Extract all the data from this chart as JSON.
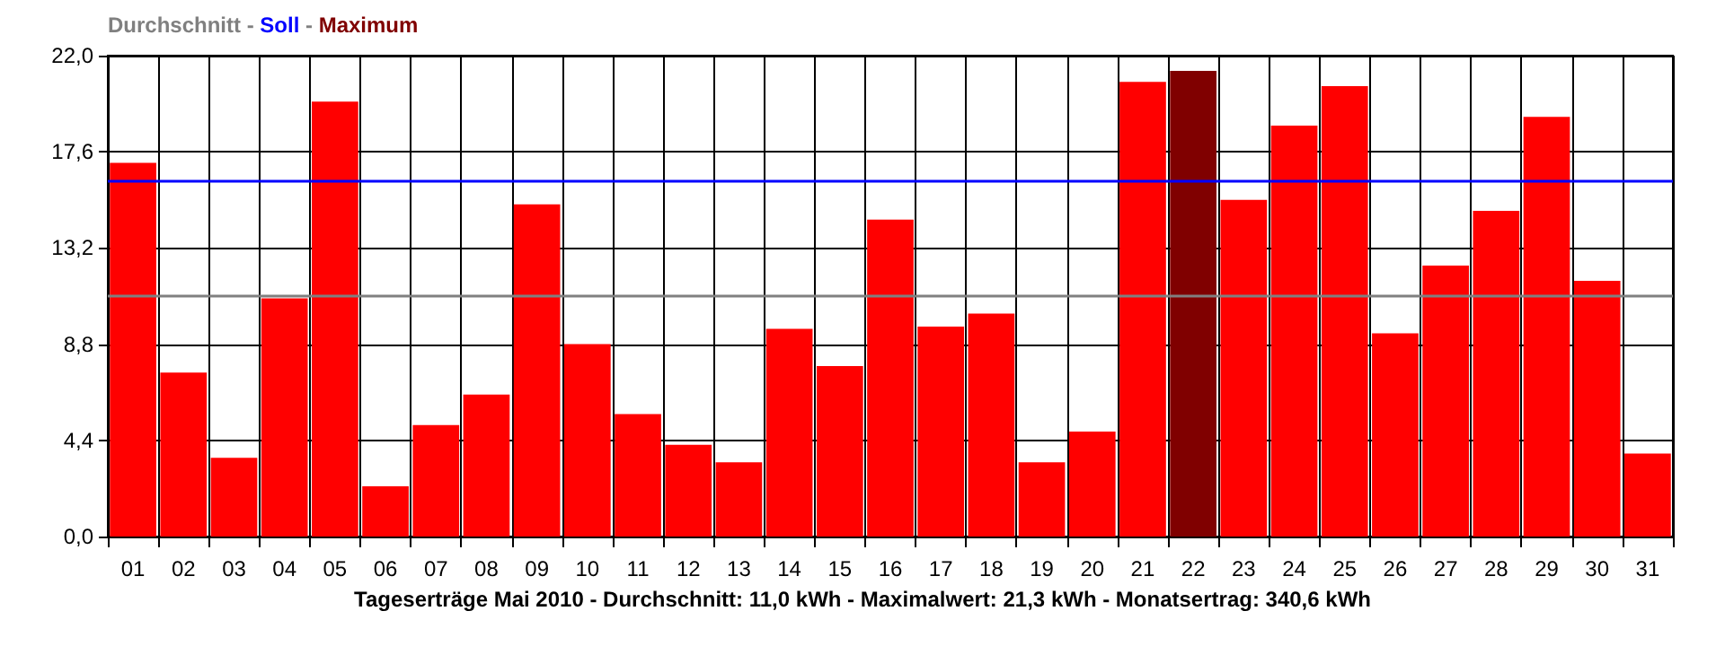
{
  "chart_data": {
    "type": "bar",
    "categories": [
      "01",
      "02",
      "03",
      "04",
      "05",
      "06",
      "07",
      "08",
      "09",
      "10",
      "11",
      "12",
      "13",
      "14",
      "15",
      "16",
      "17",
      "18",
      "19",
      "20",
      "21",
      "22",
      "23",
      "24",
      "25",
      "26",
      "27",
      "28",
      "29",
      "30",
      "31"
    ],
    "series": [
      {
        "color": "#ff0000",
        "values": [
          17.1,
          7.5,
          3.6,
          10.9,
          19.9,
          2.3,
          5.1,
          6.5,
          15.2,
          8.8,
          5.6,
          4.2,
          3.4,
          9.5,
          7.8,
          14.5,
          9.6,
          10.2,
          3.4,
          4.8,
          20.8,
          null,
          15.4,
          18.8,
          20.6,
          9.3,
          12.4,
          14.9,
          19.2,
          11.7,
          3.8
        ]
      },
      {
        "name": "Maximum",
        "color": "#800000",
        "values": [
          null,
          null,
          null,
          null,
          null,
          null,
          null,
          null,
          null,
          null,
          null,
          null,
          null,
          null,
          null,
          null,
          null,
          null,
          null,
          null,
          null,
          21.3,
          null,
          null,
          null,
          null,
          null,
          null,
          null,
          null,
          null
        ]
      }
    ],
    "ylim": [
      0,
      22
    ],
    "yticks": [
      {
        "value": 0,
        "label": "0,0"
      },
      {
        "value": 4.4,
        "label": "4,4"
      },
      {
        "value": 8.8,
        "label": "8,8"
      },
      {
        "value": 13.2,
        "label": "13,2"
      },
      {
        "value": 17.6,
        "label": "17,6"
      },
      {
        "value": 22,
        "label": "22,0"
      }
    ],
    "ref_lines": [
      {
        "axis": "y",
        "value": 11.0,
        "label": "Durchschnitt",
        "color": "#808080"
      },
      {
        "axis": "y",
        "value": 16.3,
        "label": "Soll",
        "color": "#0000ff"
      }
    ],
    "annotations": [
      "-",
      "-",
      "Tageserträge Mai 2010 - Durchschnitt: 11,0 kWh - Maximalwert: 21,3 kWh - Monatsertrag: 340,6 kWh"
    ],
    "grid": true,
    "legend": "top left"
  }
}
